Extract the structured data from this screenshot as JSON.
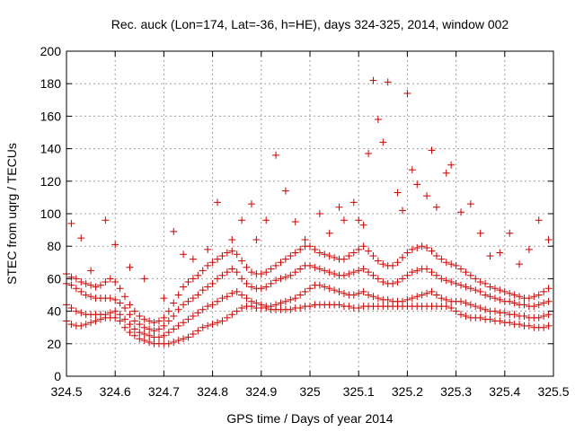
{
  "chart_data": {
    "type": "scatter",
    "title": "Rec. auck (Lon=174, Lat=-36, h=HE), days 324-325, 2014, window 002",
    "xlabel": "GPS time / Days of year 2014",
    "ylabel": "STEC from uqrg / TECUs",
    "xlim": [
      324.5,
      325.5
    ],
    "ylim": [
      0,
      200
    ],
    "xticks": [
      "324.5",
      "324.6",
      "324.7",
      "324.8",
      "324.9",
      "325",
      "325.1",
      "325.2",
      "325.3",
      "325.4",
      "325.5"
    ],
    "yticks": [
      "0",
      "20",
      "40",
      "60",
      "80",
      "100",
      "120",
      "140",
      "160",
      "180",
      "200"
    ],
    "grid": true,
    "marker": "+",
    "color": "#cc0000",
    "series": [
      {
        "x": [
          324.5,
          324.51,
          324.52,
          324.53,
          324.54,
          324.55,
          324.56,
          324.57,
          324.58,
          324.59,
          324.6,
          324.61,
          324.62,
          324.63,
          324.64,
          324.65,
          324.66,
          324.67,
          324.68,
          324.69,
          324.7,
          324.71,
          324.72,
          324.73,
          324.74,
          324.75,
          324.76,
          324.77,
          324.78,
          324.79,
          324.8,
          324.81,
          324.82,
          324.83,
          324.84,
          324.85,
          324.86,
          324.87,
          324.88,
          324.89,
          324.9,
          324.91,
          324.92,
          324.93,
          324.94,
          324.95,
          324.96,
          324.97,
          324.98,
          324.99,
          325.0,
          325.01,
          325.02,
          325.03,
          325.04,
          325.05,
          325.06,
          325.07,
          325.08,
          325.09,
          325.1,
          325.11,
          325.12,
          325.13,
          325.14,
          325.15,
          325.16,
          325.17,
          325.18,
          325.19,
          325.2,
          325.21,
          325.22,
          325.23,
          325.24,
          325.25,
          325.26,
          325.27,
          325.28,
          325.29,
          325.3,
          325.31,
          325.32,
          325.33,
          325.34,
          325.35,
          325.36,
          325.37,
          325.38,
          325.39,
          325.4,
          325.41,
          325.42,
          325.43,
          325.44,
          325.45,
          325.46,
          325.47,
          325.48,
          325.49
        ],
        "y": [
          34,
          32,
          31,
          31,
          32,
          33,
          34,
          35,
          36,
          36,
          36,
          34,
          30,
          27,
          25,
          23,
          22,
          21,
          20,
          20,
          20,
          20,
          21,
          22,
          23,
          24,
          26,
          28,
          30,
          31,
          32,
          33,
          34,
          36,
          38,
          40,
          42,
          43,
          43,
          42,
          42,
          42,
          41,
          41,
          41,
          41,
          41,
          42,
          42,
          43,
          43,
          44,
          44,
          44,
          44,
          44,
          44,
          43,
          43,
          42,
          42,
          43,
          43,
          43,
          43,
          43,
          43,
          43,
          43,
          43,
          43,
          43,
          43,
          43,
          43,
          43,
          43,
          43,
          43,
          42,
          40,
          38,
          37,
          36,
          36,
          36,
          35,
          35,
          34,
          34,
          33,
          33,
          32,
          32,
          31,
          31,
          30,
          30,
          30,
          31
        ]
      },
      {
        "x": [
          324.5,
          324.51,
          324.52,
          324.53,
          324.54,
          324.55,
          324.56,
          324.57,
          324.58,
          324.59,
          324.6,
          324.61,
          324.62,
          324.63,
          324.64,
          324.65,
          324.66,
          324.67,
          324.68,
          324.69,
          324.7,
          324.71,
          324.72,
          324.73,
          324.74,
          324.75,
          324.76,
          324.77,
          324.78,
          324.79,
          324.8,
          324.81,
          324.82,
          324.83,
          324.84,
          324.85,
          324.86,
          324.87,
          324.88,
          324.89,
          324.9,
          324.91,
          324.92,
          324.93,
          324.94,
          324.95,
          324.96,
          324.97,
          324.98,
          324.99,
          325.0,
          325.01,
          325.02,
          325.03,
          325.04,
          325.05,
          325.06,
          325.07,
          325.08,
          325.09,
          325.1,
          325.11,
          325.12,
          325.13,
          325.14,
          325.15,
          325.16,
          325.17,
          325.18,
          325.19,
          325.2,
          325.21,
          325.22,
          325.23,
          325.24,
          325.25,
          325.26,
          325.27,
          325.28,
          325.29,
          325.3,
          325.31,
          325.32,
          325.33,
          325.34,
          325.35,
          325.36,
          325.37,
          325.38,
          325.39,
          325.4,
          325.41,
          325.42,
          325.43,
          325.44,
          325.45,
          325.46,
          325.47,
          325.48,
          325.49
        ],
        "y": [
          44,
          42,
          40,
          39,
          38,
          38,
          38,
          38,
          38,
          39,
          40,
          38,
          35,
          32,
          29,
          27,
          26,
          25,
          24,
          24,
          25,
          27,
          29,
          31,
          33,
          35,
          37,
          39,
          41,
          43,
          44,
          46,
          48,
          49,
          51,
          52,
          50,
          48,
          46,
          45,
          44,
          43,
          43,
          44,
          45,
          46,
          47,
          48,
          50,
          52,
          54,
          56,
          56,
          55,
          54,
          53,
          52,
          51,
          50,
          50,
          51,
          52,
          50,
          49,
          48,
          47,
          47,
          46,
          46,
          46,
          47,
          48,
          49,
          50,
          51,
          52,
          50,
          48,
          47,
          46,
          46,
          46,
          45,
          44,
          43,
          42,
          41,
          40,
          40,
          39,
          39,
          38,
          38,
          37,
          37,
          36,
          36,
          36,
          37,
          38
        ]
      },
      {
        "x": [
          324.5,
          324.51,
          324.52,
          324.53,
          324.54,
          324.55,
          324.56,
          324.57,
          324.58,
          324.59,
          324.6,
          324.61,
          324.62,
          324.63,
          324.64,
          324.65,
          324.66,
          324.67,
          324.68,
          324.69,
          324.7,
          324.71,
          324.72,
          324.73,
          324.74,
          324.75,
          324.76,
          324.77,
          324.78,
          324.79,
          324.8,
          324.81,
          324.82,
          324.83,
          324.84,
          324.85,
          324.86,
          324.87,
          324.88,
          324.89,
          324.9,
          324.91,
          324.92,
          324.93,
          324.94,
          324.95,
          324.96,
          324.97,
          324.98,
          324.99,
          325.0,
          325.01,
          325.02,
          325.03,
          325.04,
          325.05,
          325.06,
          325.07,
          325.08,
          325.09,
          325.1,
          325.11,
          325.12,
          325.13,
          325.14,
          325.15,
          325.16,
          325.17,
          325.18,
          325.19,
          325.2,
          325.21,
          325.22,
          325.23,
          325.24,
          325.25,
          325.26,
          325.27,
          325.28,
          325.29,
          325.3,
          325.31,
          325.32,
          325.33,
          325.34,
          325.35,
          325.36,
          325.37,
          325.38,
          325.39,
          325.4,
          325.41,
          325.42,
          325.43,
          325.44,
          325.45,
          325.46,
          325.47,
          325.48,
          325.49
        ],
        "y": [
          57,
          56,
          54,
          52,
          50,
          49,
          48,
          48,
          48,
          48,
          47,
          45,
          42,
          38,
          34,
          32,
          30,
          29,
          28,
          29,
          31,
          34,
          37,
          41,
          44,
          46,
          48,
          50,
          53,
          55,
          57,
          60,
          62,
          64,
          66,
          64,
          60,
          57,
          55,
          54,
          54,
          55,
          57,
          59,
          60,
          61,
          62,
          64,
          66,
          68,
          68,
          67,
          66,
          65,
          64,
          63,
          62,
          62,
          63,
          64,
          65,
          66,
          64,
          62,
          60,
          58,
          57,
          57,
          58,
          60,
          62,
          64,
          65,
          66,
          66,
          64,
          62,
          60,
          59,
          58,
          57,
          56,
          55,
          54,
          53,
          52,
          50,
          49,
          48,
          47,
          46,
          46,
          45,
          44,
          44,
          43,
          43,
          44,
          45,
          46
        ]
      },
      {
        "x": [
          324.5,
          324.51,
          324.52,
          324.53,
          324.54,
          324.55,
          324.56,
          324.57,
          324.58,
          324.59,
          324.6,
          324.61,
          324.62,
          324.63,
          324.64,
          324.65,
          324.66,
          324.67,
          324.68,
          324.69,
          324.7,
          324.71,
          324.72,
          324.73,
          324.74,
          324.75,
          324.76,
          324.77,
          324.78,
          324.79,
          324.8,
          324.81,
          324.82,
          324.83,
          324.84,
          324.85,
          324.86,
          324.87,
          324.88,
          324.89,
          324.9,
          324.91,
          324.92,
          324.93,
          324.94,
          324.95,
          324.96,
          324.97,
          324.98,
          324.99,
          325.0,
          325.01,
          325.02,
          325.03,
          325.04,
          325.05,
          325.06,
          325.07,
          325.08,
          325.09,
          325.1,
          325.11,
          325.12,
          325.13,
          325.14,
          325.15,
          325.16,
          325.17,
          325.18,
          325.19,
          325.2,
          325.21,
          325.22,
          325.23,
          325.24,
          325.25,
          325.26,
          325.27,
          325.28,
          325.29,
          325.3,
          325.31,
          325.32,
          325.33,
          325.34,
          325.35,
          325.36,
          325.37,
          325.38,
          325.39,
          325.4,
          325.41,
          325.42,
          325.43,
          325.44,
          325.45,
          325.46,
          325.47,
          325.48,
          325.49
        ],
        "y": [
          63,
          61,
          60,
          58,
          57,
          56,
          55,
          56,
          58,
          60,
          58,
          54,
          49,
          44,
          40,
          37,
          35,
          34,
          33,
          34,
          36,
          40,
          45,
          50,
          55,
          58,
          60,
          62,
          65,
          68,
          70,
          72,
          74,
          76,
          77,
          75,
          71,
          67,
          64,
          63,
          63,
          64,
          66,
          68,
          70,
          72,
          74,
          76,
          78,
          80,
          80,
          78,
          76,
          75,
          74,
          73,
          72,
          72,
          74,
          76,
          78,
          80,
          77,
          74,
          71,
          69,
          68,
          68,
          70,
          73,
          76,
          78,
          79,
          80,
          79,
          77,
          74,
          72,
          70,
          69,
          68,
          66,
          64,
          62,
          60,
          58,
          57,
          55,
          54,
          53,
          52,
          51,
          50,
          49,
          48,
          48,
          49,
          50,
          52,
          54
        ]
      },
      {
        "x": [
          324.51,
          324.53,
          324.55,
          324.58,
          324.6,
          324.63,
          324.66,
          324.7,
          324.72,
          324.74,
          324.76,
          324.79,
          324.81,
          324.84,
          324.86,
          324.88,
          324.89,
          324.91,
          324.93,
          324.95,
          324.97,
          324.99,
          325.02,
          325.04,
          325.06,
          325.07,
          325.09,
          325.1,
          325.11,
          325.12,
          325.13,
          325.14,
          325.15,
          325.16,
          325.18,
          325.19,
          325.2,
          325.21,
          325.22,
          325.24,
          325.25,
          325.26,
          325.28,
          325.29,
          325.31,
          325.33,
          325.35,
          325.37,
          325.39,
          325.41,
          325.43,
          325.45,
          325.47,
          325.49
        ],
        "y": [
          94,
          85,
          65,
          96,
          81,
          67,
          60,
          48,
          89,
          75,
          72,
          78,
          107,
          84,
          96,
          106,
          84,
          96,
          136,
          114,
          95,
          84,
          100,
          88,
          104,
          96,
          107,
          96,
          93,
          137,
          182,
          158,
          144,
          181,
          113,
          102,
          174,
          127,
          118,
          111,
          139,
          104,
          125,
          130,
          101,
          106,
          88,
          74,
          76,
          88,
          69,
          78,
          96,
          84
        ]
      }
    ]
  }
}
